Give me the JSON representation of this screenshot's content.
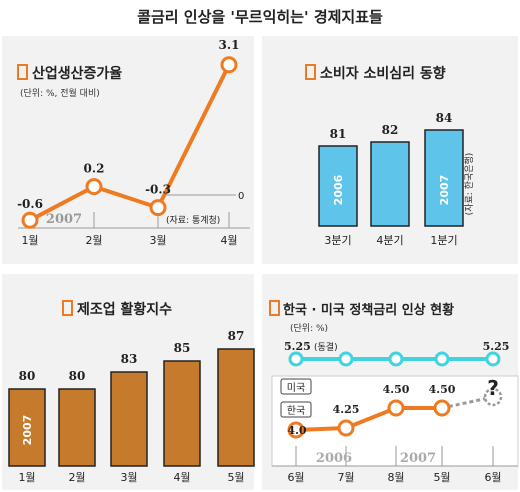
{
  "title": "콜금리 인상을 '무르익히는' 경제지표들",
  "colors": {
    "orange": "#ee7b22",
    "bar_brown": "#c57a2c",
    "blue": "#5ec4ea",
    "cyan": "#41d3de",
    "panel_bg": "#f2f2f2",
    "line_gray": "#b0b0b0",
    "text": "#222222"
  },
  "panels": {
    "industrial": {
      "title": "산업생산증가율",
      "unit_note": "(단위: %, 전월 대비)",
      "source": "(자료: 통계청)",
      "year_label": "2007",
      "zero_label": "0"
    },
    "consumer": {
      "title": "소비자 소비심리 동향",
      "source": "(자료: 한국은행)",
      "bar_labels": [
        "2006",
        "2007"
      ]
    },
    "manufacturing": {
      "title": "제조업 활황지수",
      "year_label": "2007"
    },
    "rates": {
      "title": "한국 · 미국 정책금리 인상 현황",
      "unit_note": "(단위: %)",
      "us_label": "미국",
      "kr_label": "한국",
      "freeze_label": "(동결)",
      "question": "?",
      "year_labels": [
        "2006",
        "2007"
      ]
    }
  },
  "chart_data": [
    {
      "id": "industrial",
      "type": "line",
      "title": "산업생산증가율",
      "categories": [
        "1월",
        "2월",
        "3월",
        "4월"
      ],
      "values": [
        -0.6,
        0.2,
        -0.3,
        3.1
      ],
      "value_labels": [
        "-0.6",
        "0.2",
        "-0.3",
        "3.1"
      ],
      "ylabel": "%",
      "ylim": [
        -1.0,
        3.4
      ],
      "grid": false
    },
    {
      "id": "consumer",
      "type": "bar",
      "title": "소비자 소비심리 동향",
      "categories": [
        "3분기",
        "4분기",
        "1분기"
      ],
      "values": [
        81,
        82,
        84
      ],
      "ylim": [
        70,
        90
      ]
    },
    {
      "id": "manufacturing",
      "type": "bar",
      "title": "제조업 활황지수",
      "categories": [
        "1월",
        "2월",
        "3월",
        "4월",
        "5월"
      ],
      "values": [
        80,
        80,
        83,
        85,
        87
      ],
      "ylim": [
        70,
        90
      ]
    },
    {
      "id": "rates",
      "type": "line",
      "title": "한국 · 미국 정책금리 인상 현황",
      "categories": [
        "6월",
        "7월",
        "8월",
        "5월",
        "6월"
      ],
      "series": [
        {
          "name": "미국",
          "values": [
            5.25,
            5.25,
            5.25,
            5.25,
            5.25
          ],
          "value_labels": [
            "5.25",
            "",
            "",
            "",
            "5.25"
          ]
        },
        {
          "name": "한국",
          "values": [
            4.0,
            4.25,
            4.5,
            4.5,
            null
          ],
          "value_labels": [
            "4.0",
            "4.25",
            "4.50",
            "4.50",
            ""
          ]
        }
      ],
      "ylim": [
        3.6,
        5.6
      ]
    }
  ]
}
